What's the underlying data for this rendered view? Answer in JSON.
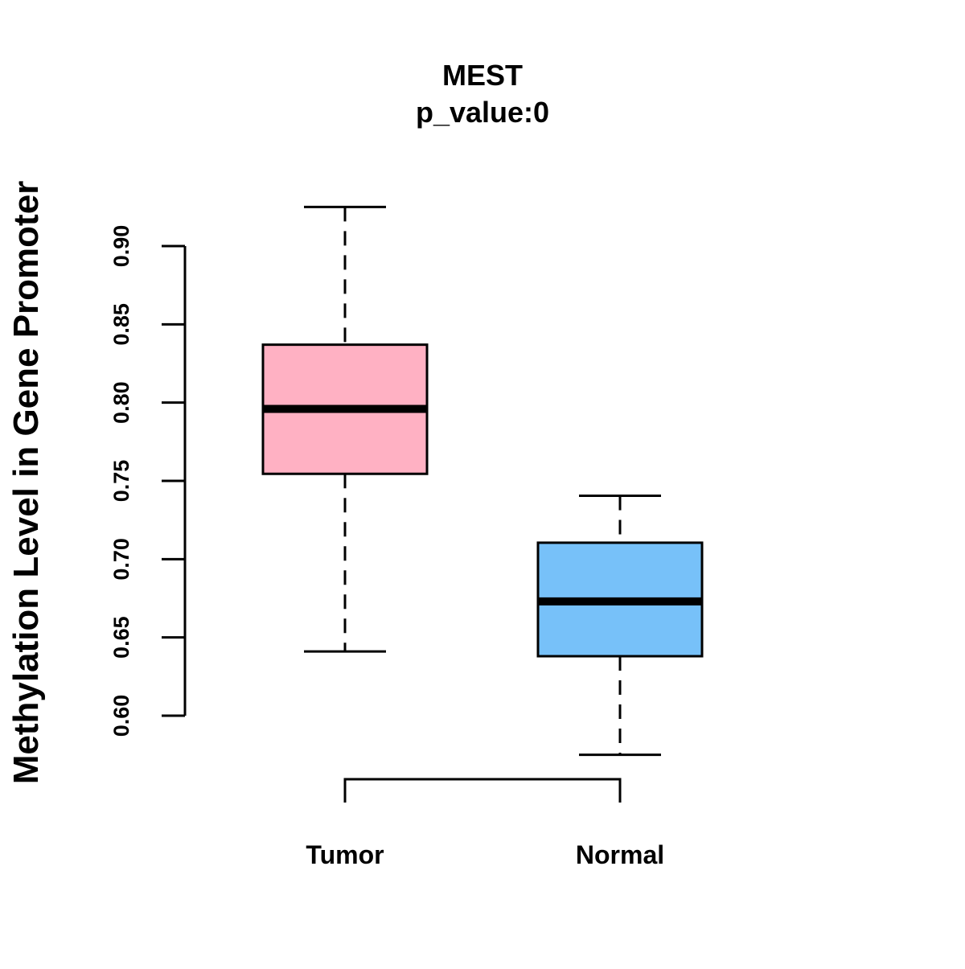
{
  "chart_data": {
    "type": "boxplot",
    "title": "MEST",
    "subtitle": "p_value:0",
    "ylabel": "Methylation Level in Gene Promoter",
    "xlabel": "",
    "ylim": [
      0.6,
      0.9
    ],
    "yticks": [
      0.6,
      0.65,
      0.7,
      0.75,
      0.8,
      0.85,
      0.9
    ],
    "ytick_labels": [
      "0.60",
      "0.65",
      "0.70",
      "0.75",
      "0.80",
      "0.85",
      "0.90"
    ],
    "grid": false,
    "categories": [
      "Tumor",
      "Normal"
    ],
    "series": [
      {
        "name": "Tumor",
        "color": "#FFB1C3",
        "whisker_low": 0.641,
        "q1": 0.7545,
        "median": 0.796,
        "q3": 0.837,
        "whisker_high": 0.925
      },
      {
        "name": "Normal",
        "color": "#77C1F9",
        "whisker_low": 0.575,
        "q1": 0.638,
        "median": 0.673,
        "q3": 0.7105,
        "whisker_high": 0.7405
      }
    ],
    "comparison_bracket": [
      "Tumor",
      "Normal"
    ]
  }
}
